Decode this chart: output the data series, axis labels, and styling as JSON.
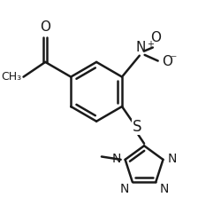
{
  "bg_color": "#ffffff",
  "line_color": "#1a1a1a",
  "lw": 1.8,
  "fs": 10,
  "figsize": [
    2.24,
    2.4
  ],
  "dpi": 100,
  "xlim": [
    -0.1,
    1.1
  ],
  "ylim": [
    -0.05,
    1.05
  ]
}
